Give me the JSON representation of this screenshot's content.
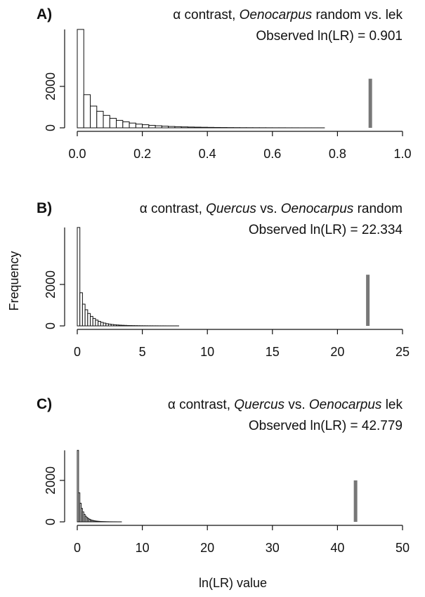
{
  "chart_data": [
    {
      "type": "histogram",
      "panel": "A)",
      "title_parts": [
        "α contrast, ",
        "Oenocarpus",
        " random vs. lek"
      ],
      "title_italic": [
        false,
        true,
        false
      ],
      "annotation": "Observed ln(LR) = 0.901",
      "observed_x": 0.901,
      "observed_height": 2370,
      "observed_color": "#777777",
      "bins": [
        0,
        0.02,
        0.04,
        0.06,
        0.08,
        0.1,
        0.12,
        0.14,
        0.16,
        0.18,
        0.2,
        0.22,
        0.24,
        0.26,
        0.28,
        0.3,
        0.32,
        0.34,
        0.36,
        0.38,
        0.4,
        0.42,
        0.44,
        0.46,
        0.48,
        0.5,
        0.52,
        0.54,
        0.56,
        0.58,
        0.6,
        0.62,
        0.64,
        0.66,
        0.68,
        0.7,
        0.72,
        0.74,
        0.76
      ],
      "counts": [
        4750,
        1600,
        1050,
        800,
        600,
        460,
        360,
        290,
        230,
        180,
        150,
        120,
        100,
        80,
        65,
        55,
        45,
        38,
        32,
        27,
        22,
        18,
        15,
        12,
        10,
        8,
        7,
        6,
        5,
        4,
        3,
        3,
        2,
        2,
        1,
        1,
        1,
        1
      ],
      "color": "#ffffff",
      "xlim": [
        0,
        1
      ],
      "xticks": [
        {
          "value": 0,
          "label": "0.0"
        },
        0.2,
        0.4,
        0.6,
        0.8,
        {
          "value": 1,
          "label": "1.0"
        }
      ],
      "ylim": [
        0,
        4750
      ],
      "yticks": [
        0,
        2000
      ]
    },
    {
      "type": "histogram",
      "panel": "B)",
      "title_parts": [
        "α contrast, ",
        "Quercus",
        " vs. ",
        "Oenocarpus",
        " random"
      ],
      "title_italic": [
        false,
        true,
        false,
        true,
        false
      ],
      "annotation": "Observed ln(LR) = 22.334",
      "observed_x": 22.334,
      "observed_height": 2470,
      "observed_color": "#777777",
      "ylabel": "Frequency",
      "bins": [
        0,
        0.2,
        0.4,
        0.6,
        0.8,
        1,
        1.2,
        1.4,
        1.6,
        1.8,
        2,
        2.2,
        2.4,
        2.6,
        2.8,
        3,
        3.2,
        3.4,
        3.6,
        3.8,
        4,
        4.2,
        4.4,
        4.6,
        4.8,
        5,
        5.2,
        5.4,
        5.6,
        5.8,
        6,
        6.2,
        6.4,
        6.6,
        6.8,
        7,
        7.2,
        7.4,
        7.6,
        7.8
      ],
      "counts": [
        4750,
        1600,
        1050,
        780,
        600,
        460,
        360,
        280,
        220,
        170,
        135,
        105,
        85,
        68,
        55,
        44,
        36,
        29,
        24,
        19,
        16,
        13,
        11,
        9,
        7,
        6,
        5,
        4,
        4,
        3,
        3,
        2,
        2,
        2,
        1,
        1,
        1,
        1,
        1
      ],
      "color": "#ffffff",
      "xlim": [
        0,
        25
      ],
      "xticks": [
        0,
        5,
        10,
        15,
        20,
        25
      ],
      "ylim": [
        0,
        4750
      ],
      "yticks": [
        0,
        2000
      ]
    },
    {
      "type": "histogram",
      "panel": "C)",
      "title_parts": [
        "α contrast, ",
        "Quercus",
        " vs. ",
        "Oenocarpus",
        " lek"
      ],
      "title_italic": [
        false,
        true,
        false,
        true,
        false
      ],
      "annotation": "Observed ln(LR) = 42.779",
      "observed_x": 42.779,
      "observed_height": 2000,
      "observed_color": "#777777",
      "xlabel": "ln(LR) value",
      "bins": [
        0,
        0.2,
        0.4,
        0.6,
        0.8,
        1,
        1.2,
        1.4,
        1.6,
        1.8,
        2,
        2.2,
        2.4,
        2.6,
        2.8,
        3,
        3.2,
        3.4,
        3.6,
        3.8,
        4,
        4.2,
        4.4,
        4.6,
        4.8,
        5,
        5.2,
        5.4,
        5.6,
        5.8,
        6,
        6.2,
        6.4,
        6.6,
        6.8
      ],
      "counts": [
        3450,
        1400,
        900,
        650,
        480,
        360,
        270,
        210,
        160,
        125,
        95,
        75,
        60,
        47,
        37,
        30,
        24,
        19,
        15,
        12,
        10,
        8,
        6,
        5,
        4,
        3,
        3,
        2,
        2,
        2,
        1,
        1,
        1,
        1
      ],
      "color": "#ffffff",
      "xlim": [
        0,
        50
      ],
      "xticks": [
        0,
        10,
        20,
        30,
        40,
        50
      ],
      "ylim": [
        0,
        3450
      ],
      "yticks": [
        0,
        2000
      ]
    }
  ]
}
